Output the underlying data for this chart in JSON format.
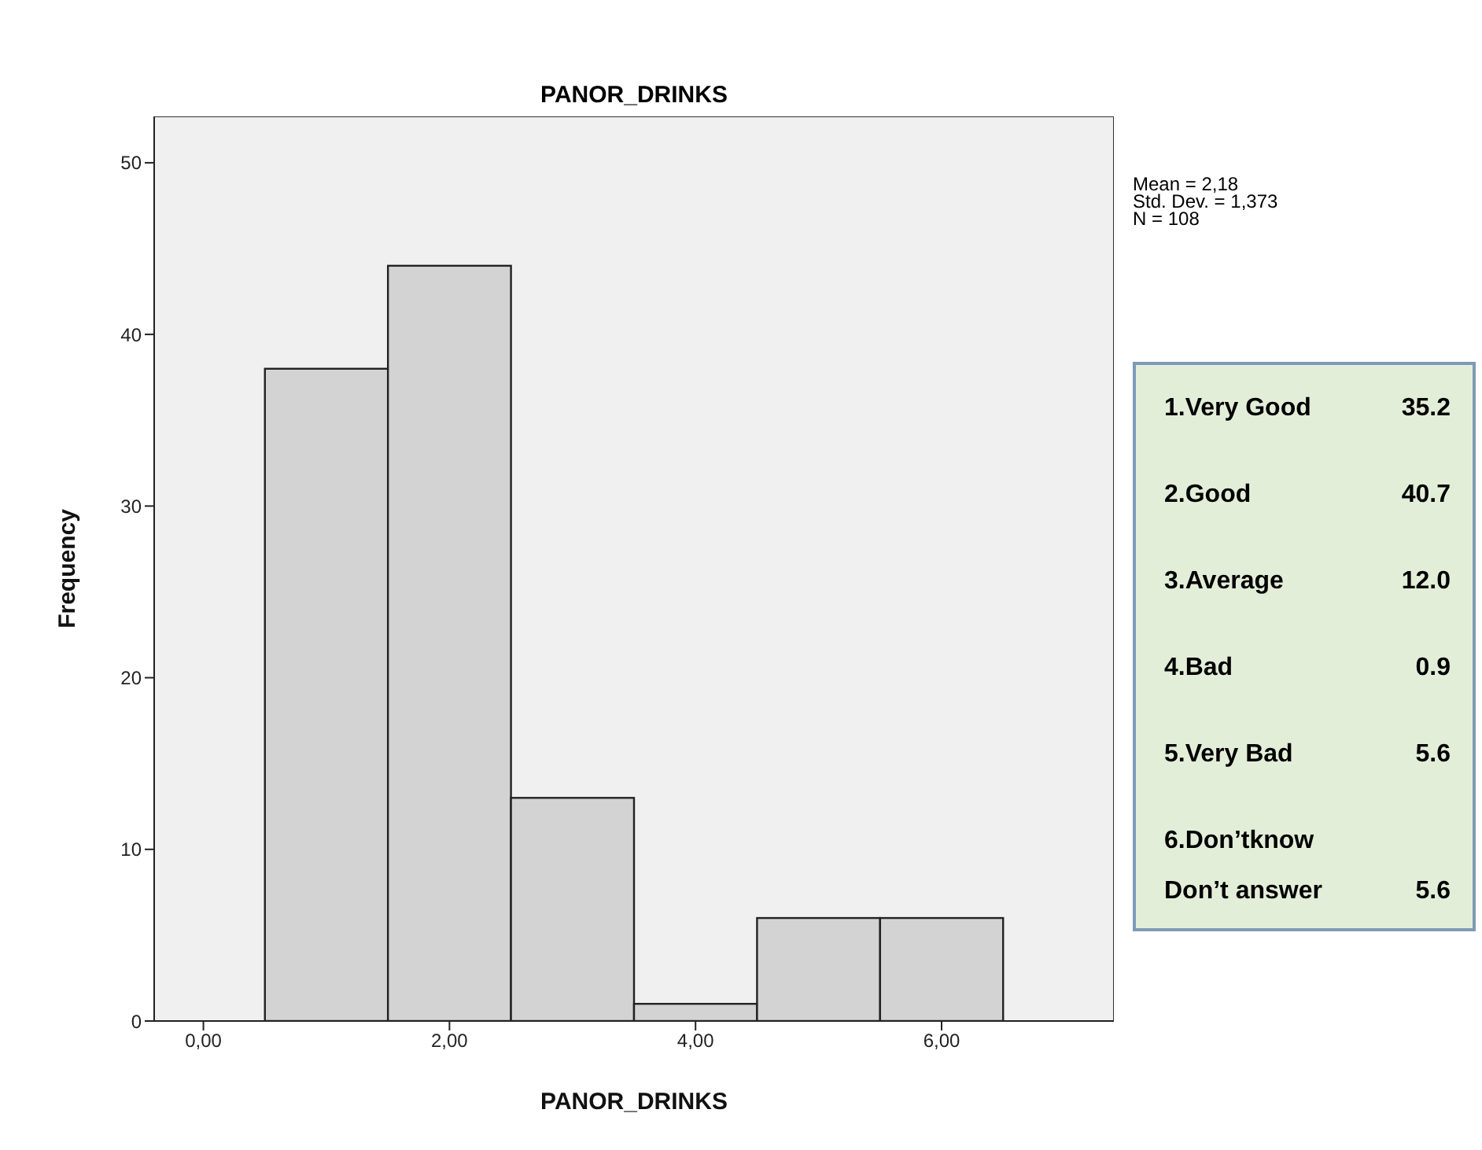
{
  "chart_data": [
    {
      "type": "histogram",
      "title": "PANOR_DRINKS",
      "xlabel": "PANOR_DRINKS",
      "ylabel": "Frequency",
      "bins": [
        0.5,
        1.5,
        2.5,
        3.5,
        4.5,
        5.5,
        6.5
      ],
      "values": [
        38,
        44,
        13,
        1,
        6,
        6
      ],
      "color": "#d3d3d3",
      "xlim": [
        -0.4,
        7.4
      ],
      "xticks": [
        {
          "value": 0,
          "label": "0,00"
        },
        {
          "value": 2,
          "label": "2,00"
        },
        {
          "value": 4,
          "label": "4,00"
        },
        {
          "value": 6,
          "label": "6,00"
        }
      ],
      "ylim": [
        0,
        52.7
      ],
      "yticks": [
        0,
        10,
        20,
        30,
        40,
        50
      ],
      "annotations": [
        "Mean = 2,18",
        "Std. Dev. = 1,373",
        "N = 108"
      ]
    },
    {
      "type": "other",
      "categories": [
        "1.Very Good",
        "2.Good",
        "3.Average",
        "4.Bad",
        "5.Very Bad",
        "6.Don’tknow\nDon’t answer"
      ],
      "value_labels": [
        "35.2",
        "40.7",
        "12.0",
        "0.9",
        "5.6",
        "5.6"
      ]
    }
  ]
}
